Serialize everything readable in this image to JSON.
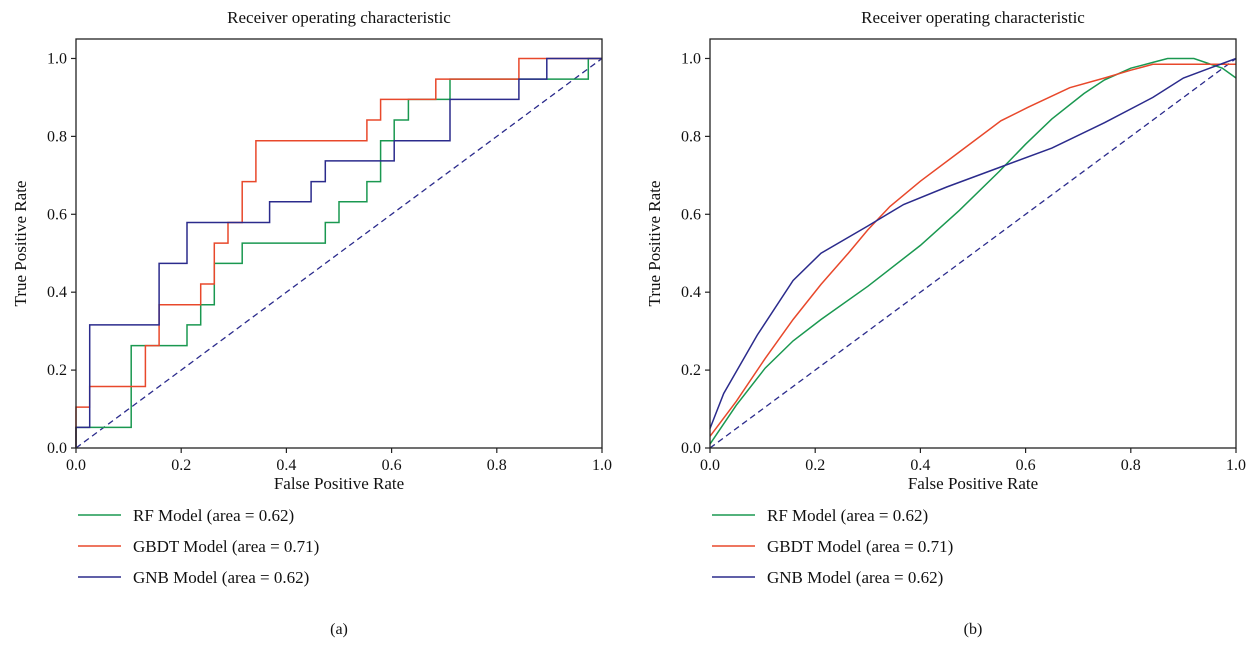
{
  "chart_data": [
    {
      "type": "line",
      "panel_label": "(a)",
      "title": "Receiver operating characteristic",
      "xlabel": "False Positive Rate",
      "ylabel": "True Positive Rate",
      "xlim": [
        0,
        1
      ],
      "ylim": [
        0,
        1.05
      ],
      "xticks": [
        "0.0",
        "0.2",
        "0.4",
        "0.6",
        "0.8",
        "1.0"
      ],
      "yticks": [
        "0.0",
        "0.2",
        "0.4",
        "0.6",
        "0.8",
        "1.0"
      ],
      "grid": false,
      "legend_position": "below",
      "diagonal": {
        "x": [
          0,
          1
        ],
        "y": [
          0,
          1
        ],
        "color": "#2b2b8c",
        "style": "dashed"
      },
      "series": [
        {
          "name": "RF Model (area = 0.62)",
          "color": "#1a9850",
          "x": [
            0,
            0,
            0.105,
            0.105,
            0.211,
            0.211,
            0.237,
            0.237,
            0.263,
            0.263,
            0.316,
            0.316,
            0.342,
            0.342,
            0.474,
            0.474,
            0.5,
            0.5,
            0.553,
            0.553,
            0.579,
            0.579,
            0.605,
            0.605,
            0.632,
            0.632,
            0.711,
            0.711,
            0.842,
            0.842,
            0.974,
            0.974,
            1.0
          ],
          "y": [
            0,
            0.053,
            0.053,
            0.263,
            0.263,
            0.316,
            0.316,
            0.368,
            0.368,
            0.474,
            0.474,
            0.526,
            0.526,
            0.526,
            0.526,
            0.579,
            0.579,
            0.632,
            0.632,
            0.684,
            0.684,
            0.789,
            0.789,
            0.842,
            0.842,
            0.895,
            0.895,
            0.947,
            0.947,
            0.947,
            0.947,
            1.0,
            1.0
          ]
        },
        {
          "name": "GBDT Model (area = 0.71)",
          "color": "#e8482b",
          "x": [
            0,
            0,
            0.026,
            0.026,
            0.132,
            0.132,
            0.158,
            0.158,
            0.237,
            0.237,
            0.263,
            0.263,
            0.289,
            0.289,
            0.316,
            0.316,
            0.342,
            0.342,
            0.553,
            0.553,
            0.579,
            0.579,
            0.684,
            0.684,
            0.842,
            0.842,
            1.0,
            1.0
          ],
          "y": [
            0,
            0.105,
            0.105,
            0.158,
            0.158,
            0.263,
            0.263,
            0.368,
            0.368,
            0.421,
            0.421,
            0.526,
            0.526,
            0.579,
            0.579,
            0.684,
            0.684,
            0.789,
            0.789,
            0.842,
            0.842,
            0.895,
            0.895,
            0.947,
            0.947,
            1.0,
            1.0,
            1.0
          ]
        },
        {
          "name": "GNB Model (area = 0.62)",
          "color": "#2b2b8c",
          "x": [
            0,
            0,
            0.026,
            0.026,
            0.158,
            0.158,
            0.211,
            0.211,
            0.368,
            0.368,
            0.447,
            0.447,
            0.474,
            0.474,
            0.605,
            0.605,
            0.711,
            0.711,
            0.842,
            0.842,
            0.895,
            0.895,
            1.0
          ],
          "y": [
            0,
            0.053,
            0.053,
            0.316,
            0.316,
            0.474,
            0.474,
            0.579,
            0.579,
            0.632,
            0.632,
            0.684,
            0.684,
            0.737,
            0.737,
            0.789,
            0.789,
            0.895,
            0.895,
            0.947,
            0.947,
            1.0,
            1.0
          ]
        }
      ]
    },
    {
      "type": "line",
      "panel_label": "(b)",
      "title": "Receiver operating characteristic",
      "xlabel": "False Positive Rate",
      "ylabel": "True Positive Rate",
      "xlim": [
        0,
        1
      ],
      "ylim": [
        0,
        1.05
      ],
      "xticks": [
        "0.0",
        "0.2",
        "0.4",
        "0.6",
        "0.8",
        "1.0"
      ],
      "yticks": [
        "0.0",
        "0.2",
        "0.4",
        "0.6",
        "0.8",
        "1.0"
      ],
      "grid": false,
      "legend_position": "below",
      "diagonal": {
        "x": [
          0,
          1
        ],
        "y": [
          0,
          1
        ],
        "color": "#2b2b8c",
        "style": "dashed"
      },
      "series": [
        {
          "name": "RF Model (area = 0.62)",
          "color": "#1a9850",
          "x": [
            0,
            0.05,
            0.105,
            0.158,
            0.211,
            0.3,
            0.4,
            0.474,
            0.55,
            0.6,
            0.65,
            0.711,
            0.75,
            0.8,
            0.842,
            0.87,
            0.92,
            0.974,
            1.0
          ],
          "y": [
            0.01,
            0.11,
            0.205,
            0.275,
            0.33,
            0.415,
            0.52,
            0.61,
            0.71,
            0.78,
            0.845,
            0.91,
            0.945,
            0.975,
            0.99,
            1.0,
            1.0,
            0.975,
            0.95
          ]
        },
        {
          "name": "GBDT Model (area = 0.71)",
          "color": "#e8482b",
          "x": [
            0,
            0.05,
            0.105,
            0.158,
            0.211,
            0.263,
            0.3,
            0.342,
            0.4,
            0.474,
            0.553,
            0.605,
            0.684,
            0.75,
            0.8,
            0.842,
            0.9,
            0.95,
            1.0
          ],
          "y": [
            0.03,
            0.12,
            0.23,
            0.33,
            0.42,
            0.5,
            0.56,
            0.62,
            0.685,
            0.76,
            0.84,
            0.875,
            0.925,
            0.95,
            0.97,
            0.985,
            0.985,
            0.985,
            0.985
          ]
        },
        {
          "name": "GNB Model (area = 0.62)",
          "color": "#2b2b8c",
          "x": [
            0,
            0.026,
            0.09,
            0.158,
            0.211,
            0.3,
            0.368,
            0.45,
            0.55,
            0.65,
            0.75,
            0.842,
            0.9,
            0.95,
            1.0
          ],
          "y": [
            0.05,
            0.14,
            0.29,
            0.43,
            0.5,
            0.57,
            0.625,
            0.67,
            0.72,
            0.77,
            0.835,
            0.9,
            0.95,
            0.975,
            1.0
          ]
        }
      ]
    }
  ]
}
